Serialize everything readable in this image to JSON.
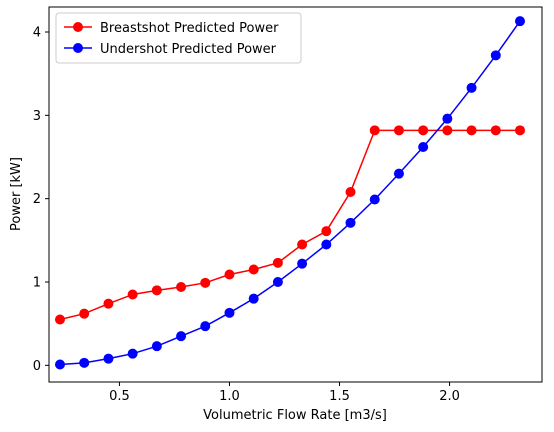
{
  "chart_data": {
    "type": "line",
    "title": "",
    "xlabel": "Volumetric Flow Rate [m3/s]",
    "ylabel": "Power [kW]",
    "xlim": [
      0.18,
      2.42
    ],
    "ylim": [
      -0.2,
      4.3
    ],
    "x_ticks": [
      0.5,
      1.0,
      1.5,
      2.0
    ],
    "x_tick_labels": [
      "0.5",
      "1.0",
      "1.5",
      "2.0"
    ],
    "y_ticks": [
      0,
      1,
      2,
      3,
      4
    ],
    "y_tick_labels": [
      "0",
      "1",
      "2",
      "3",
      "4"
    ],
    "grid": false,
    "legend_position": "top-left",
    "x": [
      0.23,
      0.34,
      0.45,
      0.56,
      0.67,
      0.78,
      0.89,
      1.0,
      1.11,
      1.22,
      1.33,
      1.44,
      1.55,
      1.66,
      1.77,
      1.88,
      1.99,
      2.1,
      2.21,
      2.32
    ],
    "series": [
      {
        "name": "Breastshot Predicted Power",
        "color": "#ff0000",
        "marker": "circle",
        "values": [
          0.55,
          0.62,
          0.74,
          0.85,
          0.9,
          0.94,
          0.99,
          1.09,
          1.15,
          1.23,
          1.45,
          1.61,
          2.08,
          2.82,
          2.82,
          2.82,
          2.82,
          2.82,
          2.82,
          2.82
        ]
      },
      {
        "name": "Undershot Predicted Power",
        "color": "#0000ff",
        "marker": "circle",
        "values": [
          0.01,
          0.03,
          0.08,
          0.14,
          0.23,
          0.35,
          0.47,
          0.63,
          0.8,
          1.0,
          1.22,
          1.45,
          1.71,
          1.99,
          2.3,
          2.62,
          2.96,
          3.33,
          3.72,
          4.13
        ]
      }
    ]
  }
}
